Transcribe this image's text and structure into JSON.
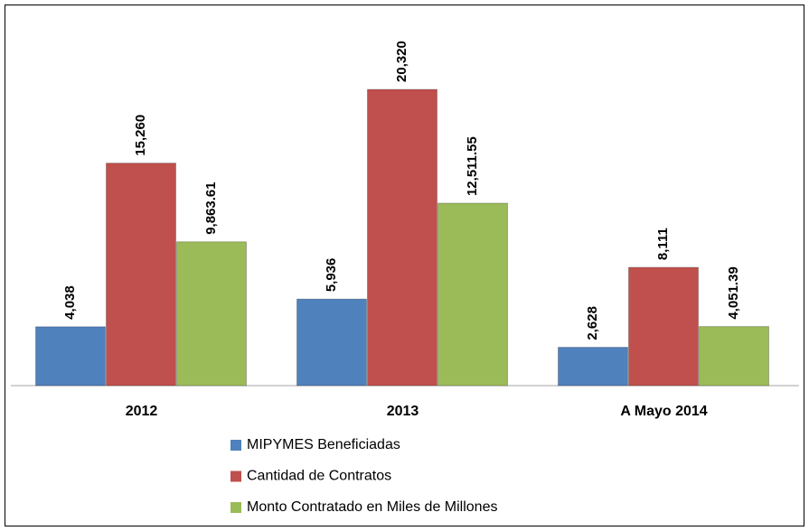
{
  "chart_data": {
    "type": "bar",
    "categories": [
      "2012",
      "2013",
      "A Mayo 2014"
    ],
    "series": [
      {
        "name": "MIPYMES Beneficiadas",
        "color": "#4f81bd",
        "values": [
          4038,
          5936,
          2628
        ],
        "value_labels": [
          "4,038",
          "5,936",
          "2,628"
        ]
      },
      {
        "name": "Cantidad de Contratos",
        "color": "#c0504d",
        "values": [
          15260,
          20320,
          8111
        ],
        "value_labels": [
          "15,260",
          "20,320",
          "8,111"
        ]
      },
      {
        "name": "Monto Contratado en Miles de Millones",
        "color": "#9bbb59",
        "values": [
          9863.61,
          12511.55,
          4051.39
        ],
        "value_labels": [
          "9,863.61",
          "12,511.55",
          "4,051.39"
        ]
      }
    ],
    "ylim": [
      0,
      25000
    ]
  }
}
